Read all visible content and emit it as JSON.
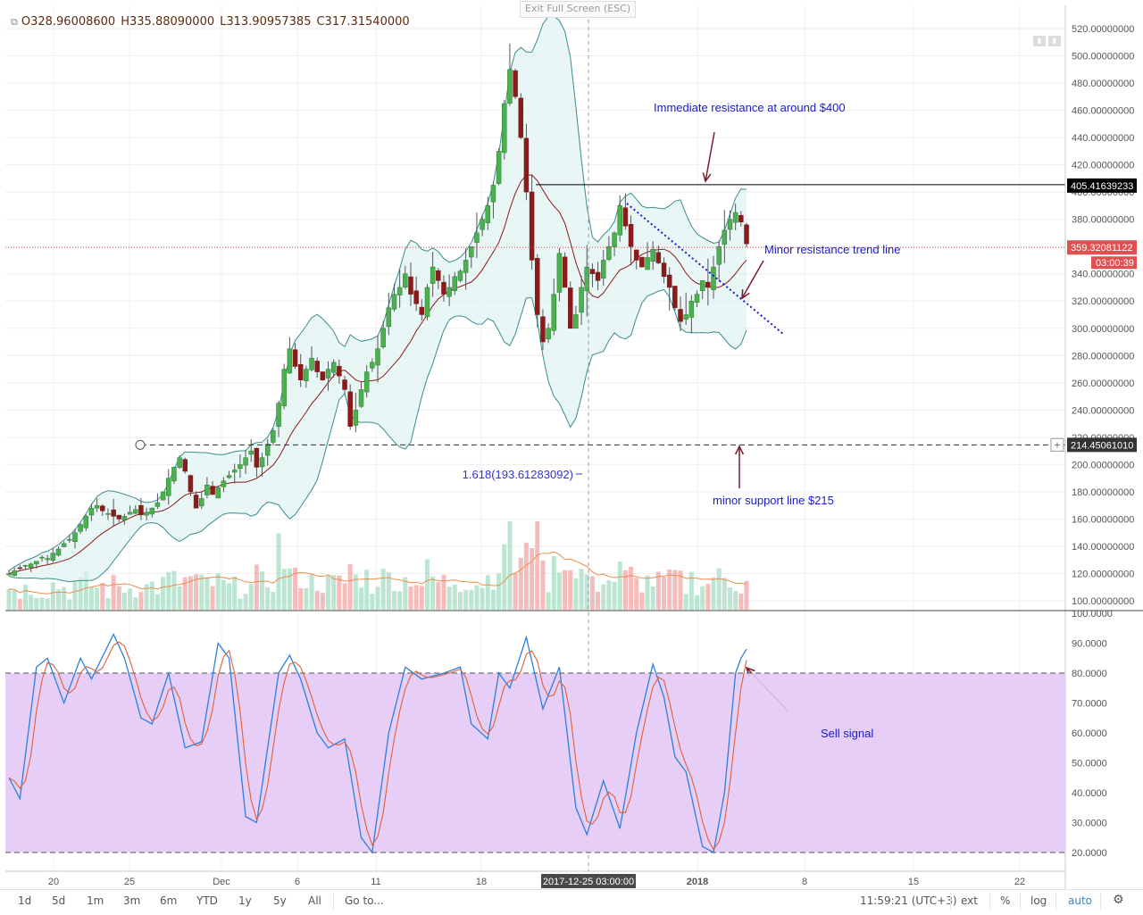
{
  "header": {
    "open": "O328.96008600",
    "high": "H335.88090000",
    "low": "L313.90957385",
    "close": "C317.31540000",
    "exit_fullscreen": "Exit Full Screen (ESC)"
  },
  "chart_data": {
    "type": "candlestick",
    "price_axis": [
      "520.00000000",
      "500.00000000",
      "480.00000000",
      "460.00000000",
      "440.00000000",
      "420.00000000",
      "400.00000000",
      "380.00000000",
      "360.00000000",
      "340.00000000",
      "320.00000000",
      "300.00000000",
      "280.00000000",
      "260.00000000",
      "240.00000000",
      "220.00000000",
      "200.00000000",
      "180.00000000",
      "160.00000000",
      "140.00000000",
      "120.00000000",
      "100.00000000"
    ],
    "price_ylim": [
      100,
      520
    ],
    "osc_axis": [
      "100.0000",
      "90.0000",
      "80.0000",
      "70.0000",
      "60.0000",
      "50.0000",
      "40.0000",
      "30.0000",
      "20.0000"
    ],
    "osc_ylim": [
      20,
      100
    ],
    "osc_band": [
      20,
      80
    ],
    "x_ticks": [
      "20",
      "25",
      "Dec",
      "6",
      "11",
      "18",
      "2017-12-25 03:00:00",
      "2018",
      "8",
      "15",
      "22"
    ],
    "crosshair_label": "2017-12-25 03:00:00",
    "price_labels": {
      "resistance": "405.41639233",
      "current": "359.32081122",
      "countdown": "03:00:39",
      "support": "214.45061010"
    },
    "levels": {
      "resistance": 405.42,
      "current": 359.32,
      "support": 214.45
    },
    "fib_label": "1.618(193.61283092)",
    "annotations": {
      "resistance": "Immediate resistance at around $400",
      "trendline": "Minor resistance trend line",
      "support": "minor support  line $215",
      "signal": "Sell signal"
    },
    "close_series": [
      120,
      122,
      124,
      126,
      127,
      129,
      132,
      131,
      135,
      138,
      142,
      145,
      150,
      156,
      162,
      168,
      170,
      166,
      164,
      162,
      160,
      162,
      165,
      167,
      163,
      165,
      168,
      172,
      180,
      190,
      198,
      205,
      195,
      180,
      168,
      175,
      185,
      178,
      183,
      188,
      192,
      196,
      200,
      205,
      210,
      198,
      205,
      215,
      225,
      245,
      270,
      285,
      272,
      262,
      270,
      278,
      268,
      262,
      270,
      275,
      265,
      255,
      228,
      240,
      255,
      268,
      275,
      285,
      300,
      315,
      325,
      330,
      340,
      325,
      318,
      310,
      330,
      345,
      335,
      325,
      330,
      338,
      342,
      350,
      360,
      370,
      380,
      390,
      405,
      430,
      465,
      490,
      470,
      440,
      400,
      350,
      310,
      290,
      300,
      325,
      355,
      330,
      300,
      310,
      330,
      345,
      340,
      335,
      350,
      360,
      370,
      390,
      375,
      360,
      350,
      345,
      352,
      358,
      348,
      338,
      330,
      315,
      305,
      310,
      320,
      325,
      335,
      330,
      345,
      360,
      372,
      380,
      385,
      378,
      362
    ]
  },
  "bottom": {
    "timeframes": [
      "1d",
      "5d",
      "1m",
      "3m",
      "6m",
      "YTD",
      "1y",
      "5y",
      "All",
      "Go to..."
    ],
    "clock": "11:59:21 (UTC+3)",
    "ext": "ext",
    "pct": "%",
    "log": "log",
    "auto": "auto",
    "settings_icon": "gear-icon"
  }
}
